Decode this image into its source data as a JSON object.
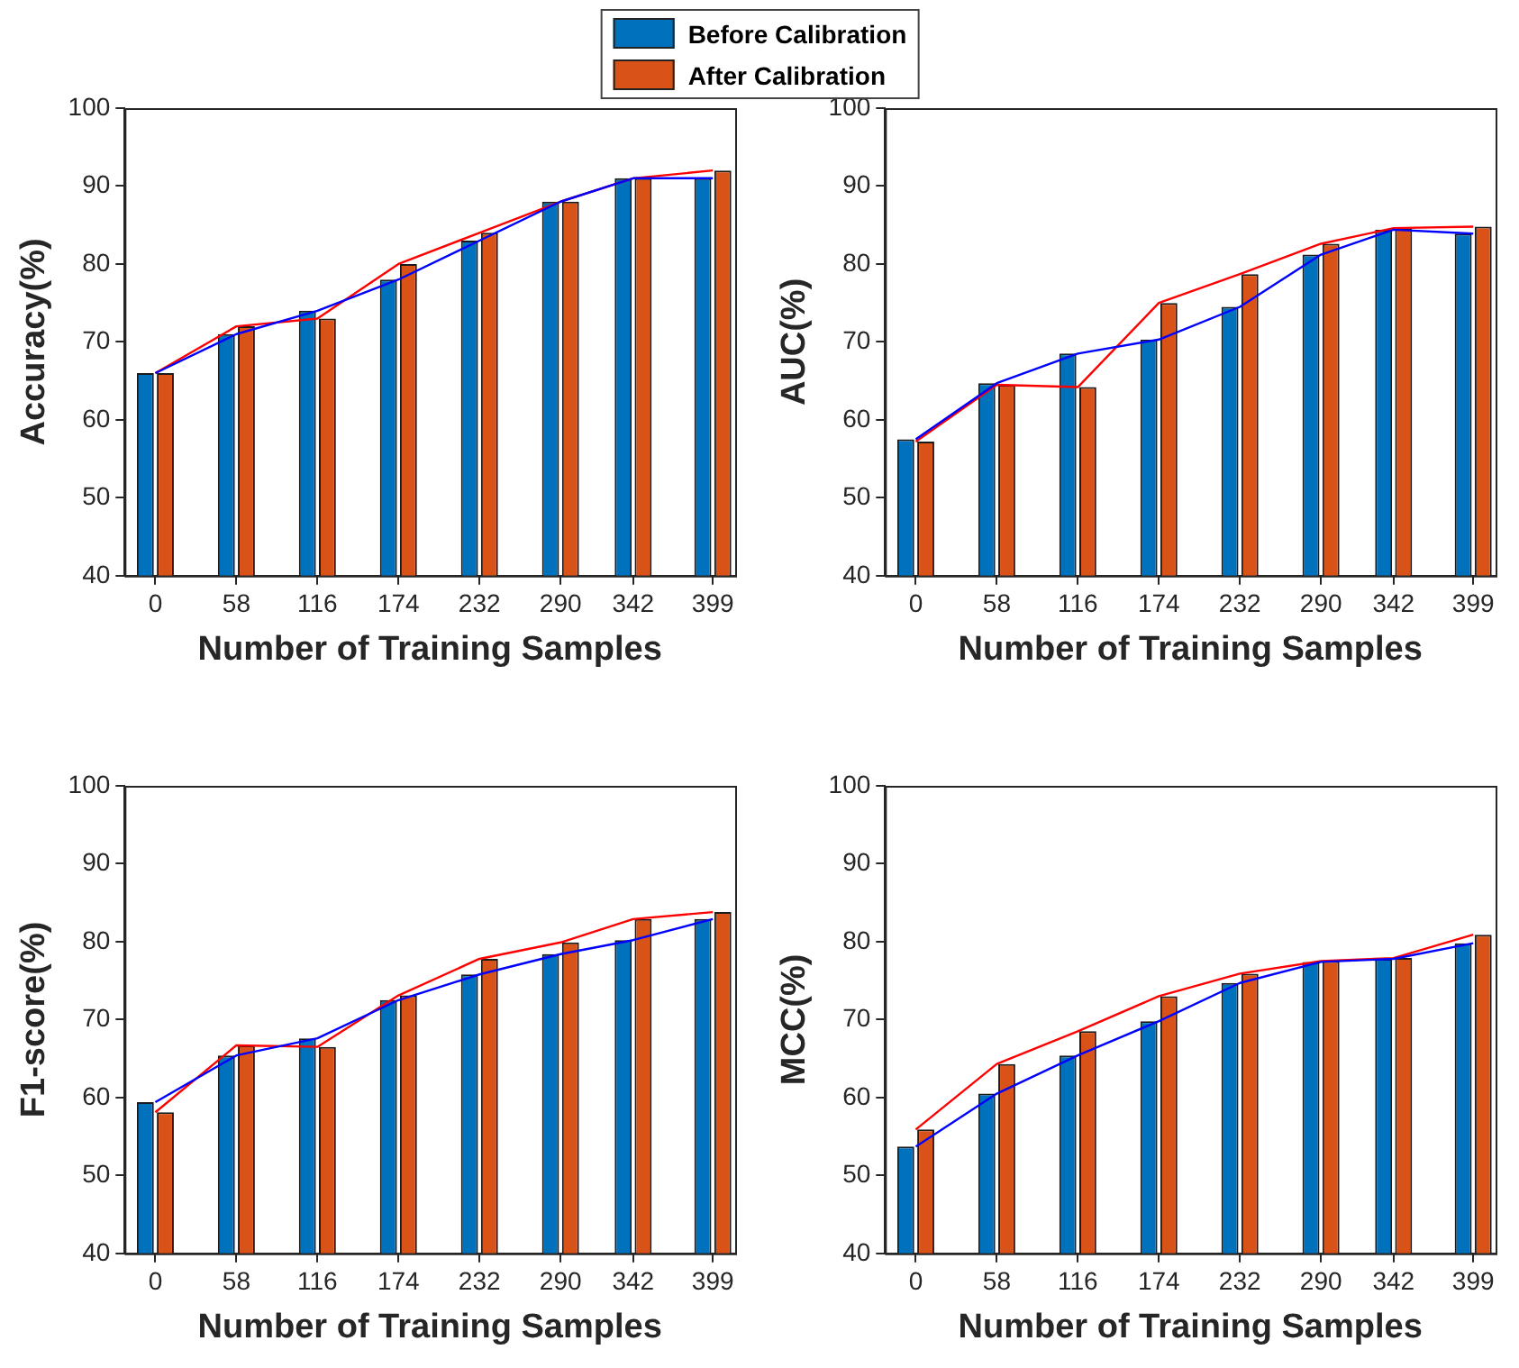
{
  "chart_data": [
    {
      "type": "line",
      "xlabel": "Number of Training Samples",
      "ylabel": "Accuracy(%)",
      "x": [
        0,
        58,
        116,
        174,
        232,
        290,
        342,
        399
      ],
      "xlim": [
        -22,
        415
      ],
      "xticks": [
        0,
        58,
        116,
        174,
        232,
        290,
        342,
        399
      ],
      "ylim": [
        40,
        100
      ],
      "yticks": [
        40,
        50,
        60,
        70,
        80,
        90,
        100
      ],
      "legend": "top",
      "series": [
        {
          "type": "bar",
          "name": "Before Calibration",
          "color": "#0072bd",
          "values": [
            66,
            71,
            74,
            78,
            83,
            88,
            91,
            91
          ]
        },
        {
          "type": "bar",
          "name": "After Calibration",
          "color": "#d95319",
          "values": [
            66,
            72,
            73,
            80,
            84,
            88,
            91,
            92
          ]
        },
        {
          "color": "#0000ff",
          "values": [
            66,
            71,
            74,
            78,
            83,
            88,
            91,
            91
          ]
        },
        {
          "color": "#ff0000",
          "values": [
            66,
            72,
            73,
            80,
            84,
            88,
            91,
            92
          ]
        }
      ]
    },
    {
      "type": "line",
      "xlabel": "Number of Training Samples",
      "ylabel": "AUC(%)",
      "x": [
        0,
        58,
        116,
        174,
        232,
        290,
        342,
        399
      ],
      "xlim": [
        -22,
        415
      ],
      "xticks": [
        0,
        58,
        116,
        174,
        232,
        290,
        342,
        399
      ],
      "ylim": [
        40,
        100
      ],
      "yticks": [
        40,
        50,
        60,
        70,
        80,
        90,
        100
      ],
      "series": [
        {
          "type": "bar",
          "color": "#0072bd",
          "values": [
            57.5,
            64.7,
            68.5,
            70.3,
            74.5,
            81.2,
            84.4,
            83.9
          ]
        },
        {
          "type": "bar",
          "color": "#d95319",
          "values": [
            57.2,
            64.5,
            64.2,
            75.0,
            78.7,
            82.6,
            84.6,
            84.8
          ]
        },
        {
          "color": "#0000ff",
          "values": [
            57.5,
            64.7,
            68.5,
            70.3,
            74.5,
            81.2,
            84.4,
            83.9
          ]
        },
        {
          "color": "#ff0000",
          "values": [
            57.2,
            64.5,
            64.2,
            75.0,
            78.7,
            82.6,
            84.6,
            84.8
          ]
        }
      ]
    },
    {
      "type": "line",
      "xlabel": "Number of Training Samples",
      "ylabel": "F1-score(%)",
      "x": [
        0,
        58,
        116,
        174,
        232,
        290,
        342,
        399
      ],
      "xlim": [
        -22,
        415
      ],
      "xticks": [
        0,
        58,
        116,
        174,
        232,
        290,
        342,
        399
      ],
      "ylim": [
        40,
        100
      ],
      "yticks": [
        40,
        50,
        60,
        70,
        80,
        90,
        100
      ],
      "series": [
        {
          "type": "bar",
          "color": "#0072bd",
          "values": [
            59.4,
            65.4,
            67.6,
            72.5,
            75.8,
            78.4,
            80.2,
            82.9
          ]
        },
        {
          "type": "bar",
          "color": "#d95319",
          "values": [
            58.1,
            66.7,
            66.5,
            73.1,
            77.8,
            79.9,
            82.9,
            83.8
          ]
        },
        {
          "color": "#0000ff",
          "values": [
            59.4,
            65.4,
            67.6,
            72.5,
            75.8,
            78.4,
            80.2,
            82.9
          ]
        },
        {
          "color": "#ff0000",
          "values": [
            58.1,
            66.7,
            66.5,
            73.1,
            77.8,
            79.9,
            82.9,
            83.8
          ]
        }
      ]
    },
    {
      "type": "line",
      "xlabel": "Number of Training Samples",
      "ylabel": "MCC(%)",
      "x": [
        0,
        58,
        116,
        174,
        232,
        290,
        342,
        399
      ],
      "xlim": [
        -22,
        415
      ],
      "xticks": [
        0,
        58,
        116,
        174,
        232,
        290,
        342,
        399
      ],
      "ylim": [
        40,
        100
      ],
      "yticks": [
        40,
        50,
        60,
        70,
        80,
        90,
        100
      ],
      "series": [
        {
          "type": "bar",
          "color": "#0072bd",
          "values": [
            53.7,
            60.5,
            65.4,
            69.8,
            74.7,
            77.4,
            77.8,
            79.8
          ]
        },
        {
          "type": "bar",
          "color": "#d95319",
          "values": [
            55.9,
            64.3,
            68.5,
            73.0,
            75.9,
            77.5,
            77.9,
            80.9
          ]
        },
        {
          "color": "#0000ff",
          "values": [
            53.7,
            60.5,
            65.4,
            69.8,
            74.7,
            77.4,
            77.8,
            79.8
          ]
        },
        {
          "color": "#ff0000",
          "values": [
            55.9,
            64.3,
            68.5,
            73.0,
            75.9,
            77.5,
            77.9,
            80.9
          ]
        }
      ]
    }
  ]
}
